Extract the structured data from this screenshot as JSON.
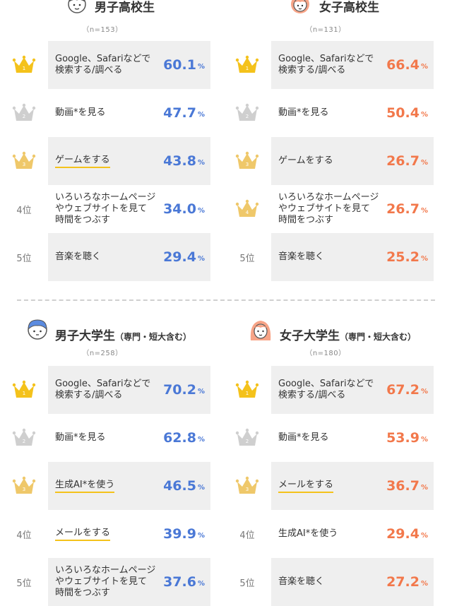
{
  "chart_data": [
    {
      "type": "table",
      "title": "男子高校生",
      "subtitle": "",
      "sample": "（n=153）",
      "accent": "#4a78d6",
      "unit": "%",
      "rows": [
        {
          "rank_label": "",
          "crown": "gold",
          "label": "Google、Safariなどで\n検索する/調べる",
          "value": "60.1",
          "underline": false
        },
        {
          "rank_label": "",
          "crown": "silver",
          "label": "動画*を見る",
          "value": "47.7",
          "underline": false
        },
        {
          "rank_label": "",
          "crown": "bronze",
          "label": "ゲームをする",
          "value": "43.8",
          "underline": true
        },
        {
          "rank_label": "4位",
          "crown": "",
          "label": "いろいろなホームページ\nやウェブサイトを見て\n時間をつぶす",
          "value": "34.0",
          "underline": false
        },
        {
          "rank_label": "5位",
          "crown": "",
          "label": "音楽を聴く",
          "value": "29.4",
          "underline": false
        }
      ]
    },
    {
      "type": "table",
      "title": "女子高校生",
      "subtitle": "",
      "sample": "（n=131）",
      "accent": "#f2784b",
      "unit": "%",
      "rows": [
        {
          "rank_label": "",
          "crown": "gold",
          "label": "Google、Safariなどで\n検索する/調べる",
          "value": "66.4",
          "underline": false
        },
        {
          "rank_label": "",
          "crown": "silver",
          "label": "動画*を見る",
          "value": "50.4",
          "underline": false
        },
        {
          "rank_label": "",
          "crown": "bronze",
          "label": "ゲームをする",
          "value": "26.7",
          "underline": false
        },
        {
          "rank_label": "",
          "crown": "bronze",
          "label": "いろいろなホームページ\nやウェブサイトを見て\n時間をつぶす",
          "value": "26.7",
          "underline": false
        },
        {
          "rank_label": "5位",
          "crown": "",
          "label": "音楽を聴く",
          "value": "25.2",
          "underline": false
        }
      ]
    },
    {
      "type": "table",
      "title": "男子大学生",
      "subtitle": "（専門・短大含む）",
      "sample": "（n=258）",
      "accent": "#4a78d6",
      "unit": "%",
      "rows": [
        {
          "rank_label": "",
          "crown": "gold",
          "label": "Google、Safariなどで\n検索する/調べる",
          "value": "70.2",
          "underline": false
        },
        {
          "rank_label": "",
          "crown": "silver",
          "label": "動画*を見る",
          "value": "62.8",
          "underline": false
        },
        {
          "rank_label": "",
          "crown": "bronze",
          "label": "生成AI*を使う",
          "value": "46.5",
          "underline": true
        },
        {
          "rank_label": "4位",
          "crown": "",
          "label": "メールをする",
          "value": "39.9",
          "underline": true
        },
        {
          "rank_label": "5位",
          "crown": "",
          "label": "いろいろなホームページ\nやウェブサイトを見て\n時間をつぶす",
          "value": "37.6",
          "underline": false
        }
      ]
    },
    {
      "type": "table",
      "title": "女子大学生",
      "subtitle": "（専門・短大含む）",
      "sample": "（n=180）",
      "accent": "#f2784b",
      "unit": "%",
      "rows": [
        {
          "rank_label": "",
          "crown": "gold",
          "label": "Google、Safariなどで\n検索する/調べる",
          "value": "67.2",
          "underline": false
        },
        {
          "rank_label": "",
          "crown": "silver",
          "label": "動画*を見る",
          "value": "53.9",
          "underline": false
        },
        {
          "rank_label": "",
          "crown": "bronze",
          "label": "メールをする",
          "value": "36.7",
          "underline": true
        },
        {
          "rank_label": "4位",
          "crown": "",
          "label": "生成AI*を使う",
          "value": "29.4",
          "underline": false
        },
        {
          "rank_label": "5位",
          "crown": "",
          "label": "音楽を聴く",
          "value": "27.2",
          "underline": false
        }
      ]
    }
  ],
  "colors": {
    "gold": "#f4c21b",
    "silver": "#cfcfcf",
    "bronze": "#efc86a",
    "shade": "#efefef"
  },
  "icons": [
    "boy-face-icon",
    "girl-face-icon",
    "young-man-face-icon",
    "young-woman-face-icon",
    "crown-icon"
  ]
}
